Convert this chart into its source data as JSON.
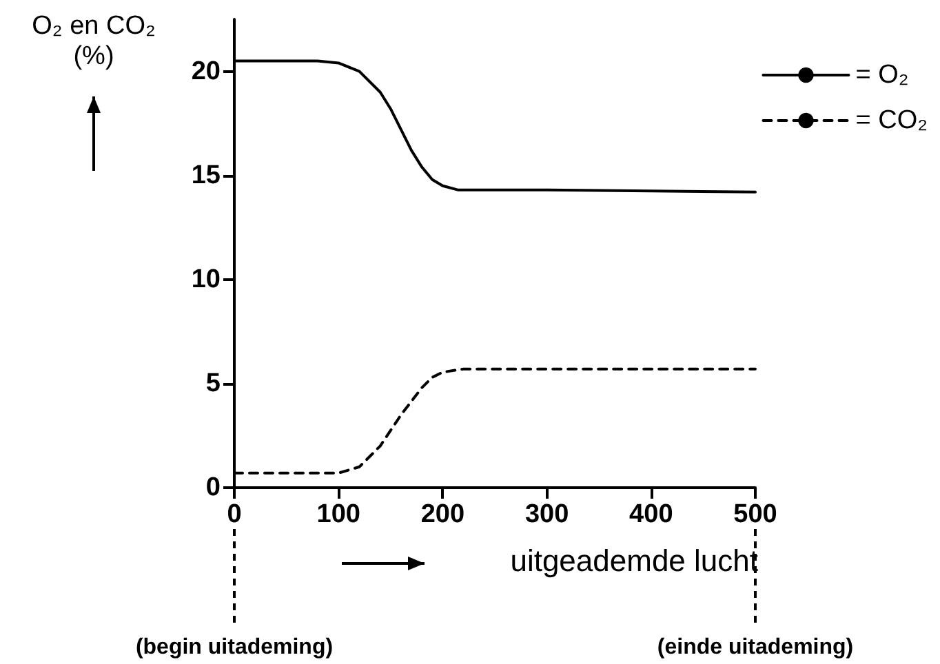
{
  "chart_data": {
    "type": "line",
    "ylabel": "O₂ en CO₂\n(%)",
    "xlabel": "uitgeademde lucht",
    "xlim": [
      0,
      500
    ],
    "xticks": [
      0,
      100,
      200,
      300,
      400,
      500
    ],
    "ylim": [
      0,
      22.5
    ],
    "yticks": [
      0,
      5,
      10,
      15,
      20
    ],
    "grid": false,
    "legend": "top right",
    "marker": "none",
    "series": [
      {
        "name": "= O₂",
        "color": "#000000",
        "line_style": "solid",
        "x": [
          0,
          80,
          100,
          120,
          140,
          150,
          160,
          170,
          180,
          190,
          200,
          215,
          300,
          500
        ],
        "values": [
          20.5,
          20.5,
          20.4,
          20.0,
          19.0,
          18.2,
          17.2,
          16.2,
          15.4,
          14.8,
          14.5,
          14.3,
          14.3,
          14.2
        ]
      },
      {
        "name": "= CO₂",
        "color": "#000000",
        "line_style": "dashed",
        "x": [
          0,
          100,
          120,
          140,
          160,
          180,
          190,
          200,
          220,
          500
        ],
        "values": [
          0.7,
          0.7,
          1.0,
          2.0,
          3.5,
          4.8,
          5.3,
          5.55,
          5.7,
          5.7
        ]
      }
    ],
    "ref_lines": [
      {
        "axis": "x",
        "value": 0,
        "label": "(begin uitademing)",
        "line_style": "dashed"
      },
      {
        "axis": "x",
        "value": 500,
        "label": "(einde uitademing)",
        "line_style": "dashed"
      }
    ]
  }
}
